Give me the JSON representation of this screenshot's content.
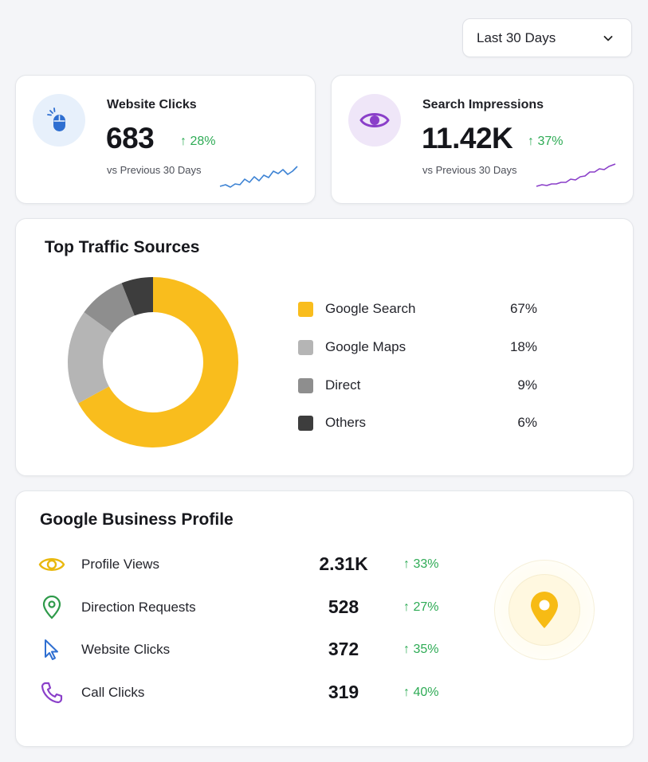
{
  "date_range": {
    "selected": "Last 30 Days"
  },
  "kpis": [
    {
      "label": "Website Clicks",
      "value": "683",
      "change": "28%",
      "comparison": "vs Previous 30 Days",
      "icon": "mouse-icon",
      "accent": "#2f6fd1"
    },
    {
      "label": "Search Impressions",
      "value": "11.42K",
      "change": "37%",
      "comparison": "vs Previous 30 Days",
      "icon": "eye-icon",
      "accent": "#8a3fc9"
    }
  ],
  "traffic": {
    "title": "Top Traffic Sources",
    "chart_data": {
      "type": "pie",
      "categories": [
        "Google Search",
        "Google Maps",
        "Direct",
        "Others"
      ],
      "values": [
        67,
        18,
        9,
        6
      ],
      "colors": [
        "#f9bd1d",
        "#b5b5b5",
        "#8e8e8e",
        "#3d3d3d"
      ]
    },
    "legend": [
      {
        "name": "Google Search",
        "pct": "67%",
        "color": "#f9bd1d"
      },
      {
        "name": "Google Maps",
        "pct": "18%",
        "color": "#b5b5b5"
      },
      {
        "name": "Direct",
        "pct": "9%",
        "color": "#8e8e8e"
      },
      {
        "name": "Others",
        "pct": "6%",
        "color": "#3d3d3d"
      }
    ]
  },
  "business_profile": {
    "title": "Google Business Profile",
    "rows": [
      {
        "label": "Profile Views",
        "value": "2.31K",
        "change": "33%",
        "icon": "eye-icon",
        "color": "#e9b80e"
      },
      {
        "label": "Direction Requests",
        "value": "528",
        "change": "27%",
        "icon": "location-pin-icon",
        "color": "#2e9a4a"
      },
      {
        "label": "Website Clicks",
        "value": "372",
        "change": "35%",
        "icon": "cursor-icon",
        "color": "#2f6fd1"
      },
      {
        "label": "Call Clicks",
        "value": "319",
        "change": "40%",
        "icon": "phone-icon",
        "color": "#8a3fc9"
      }
    ],
    "map_icon": "map-pin-icon"
  }
}
